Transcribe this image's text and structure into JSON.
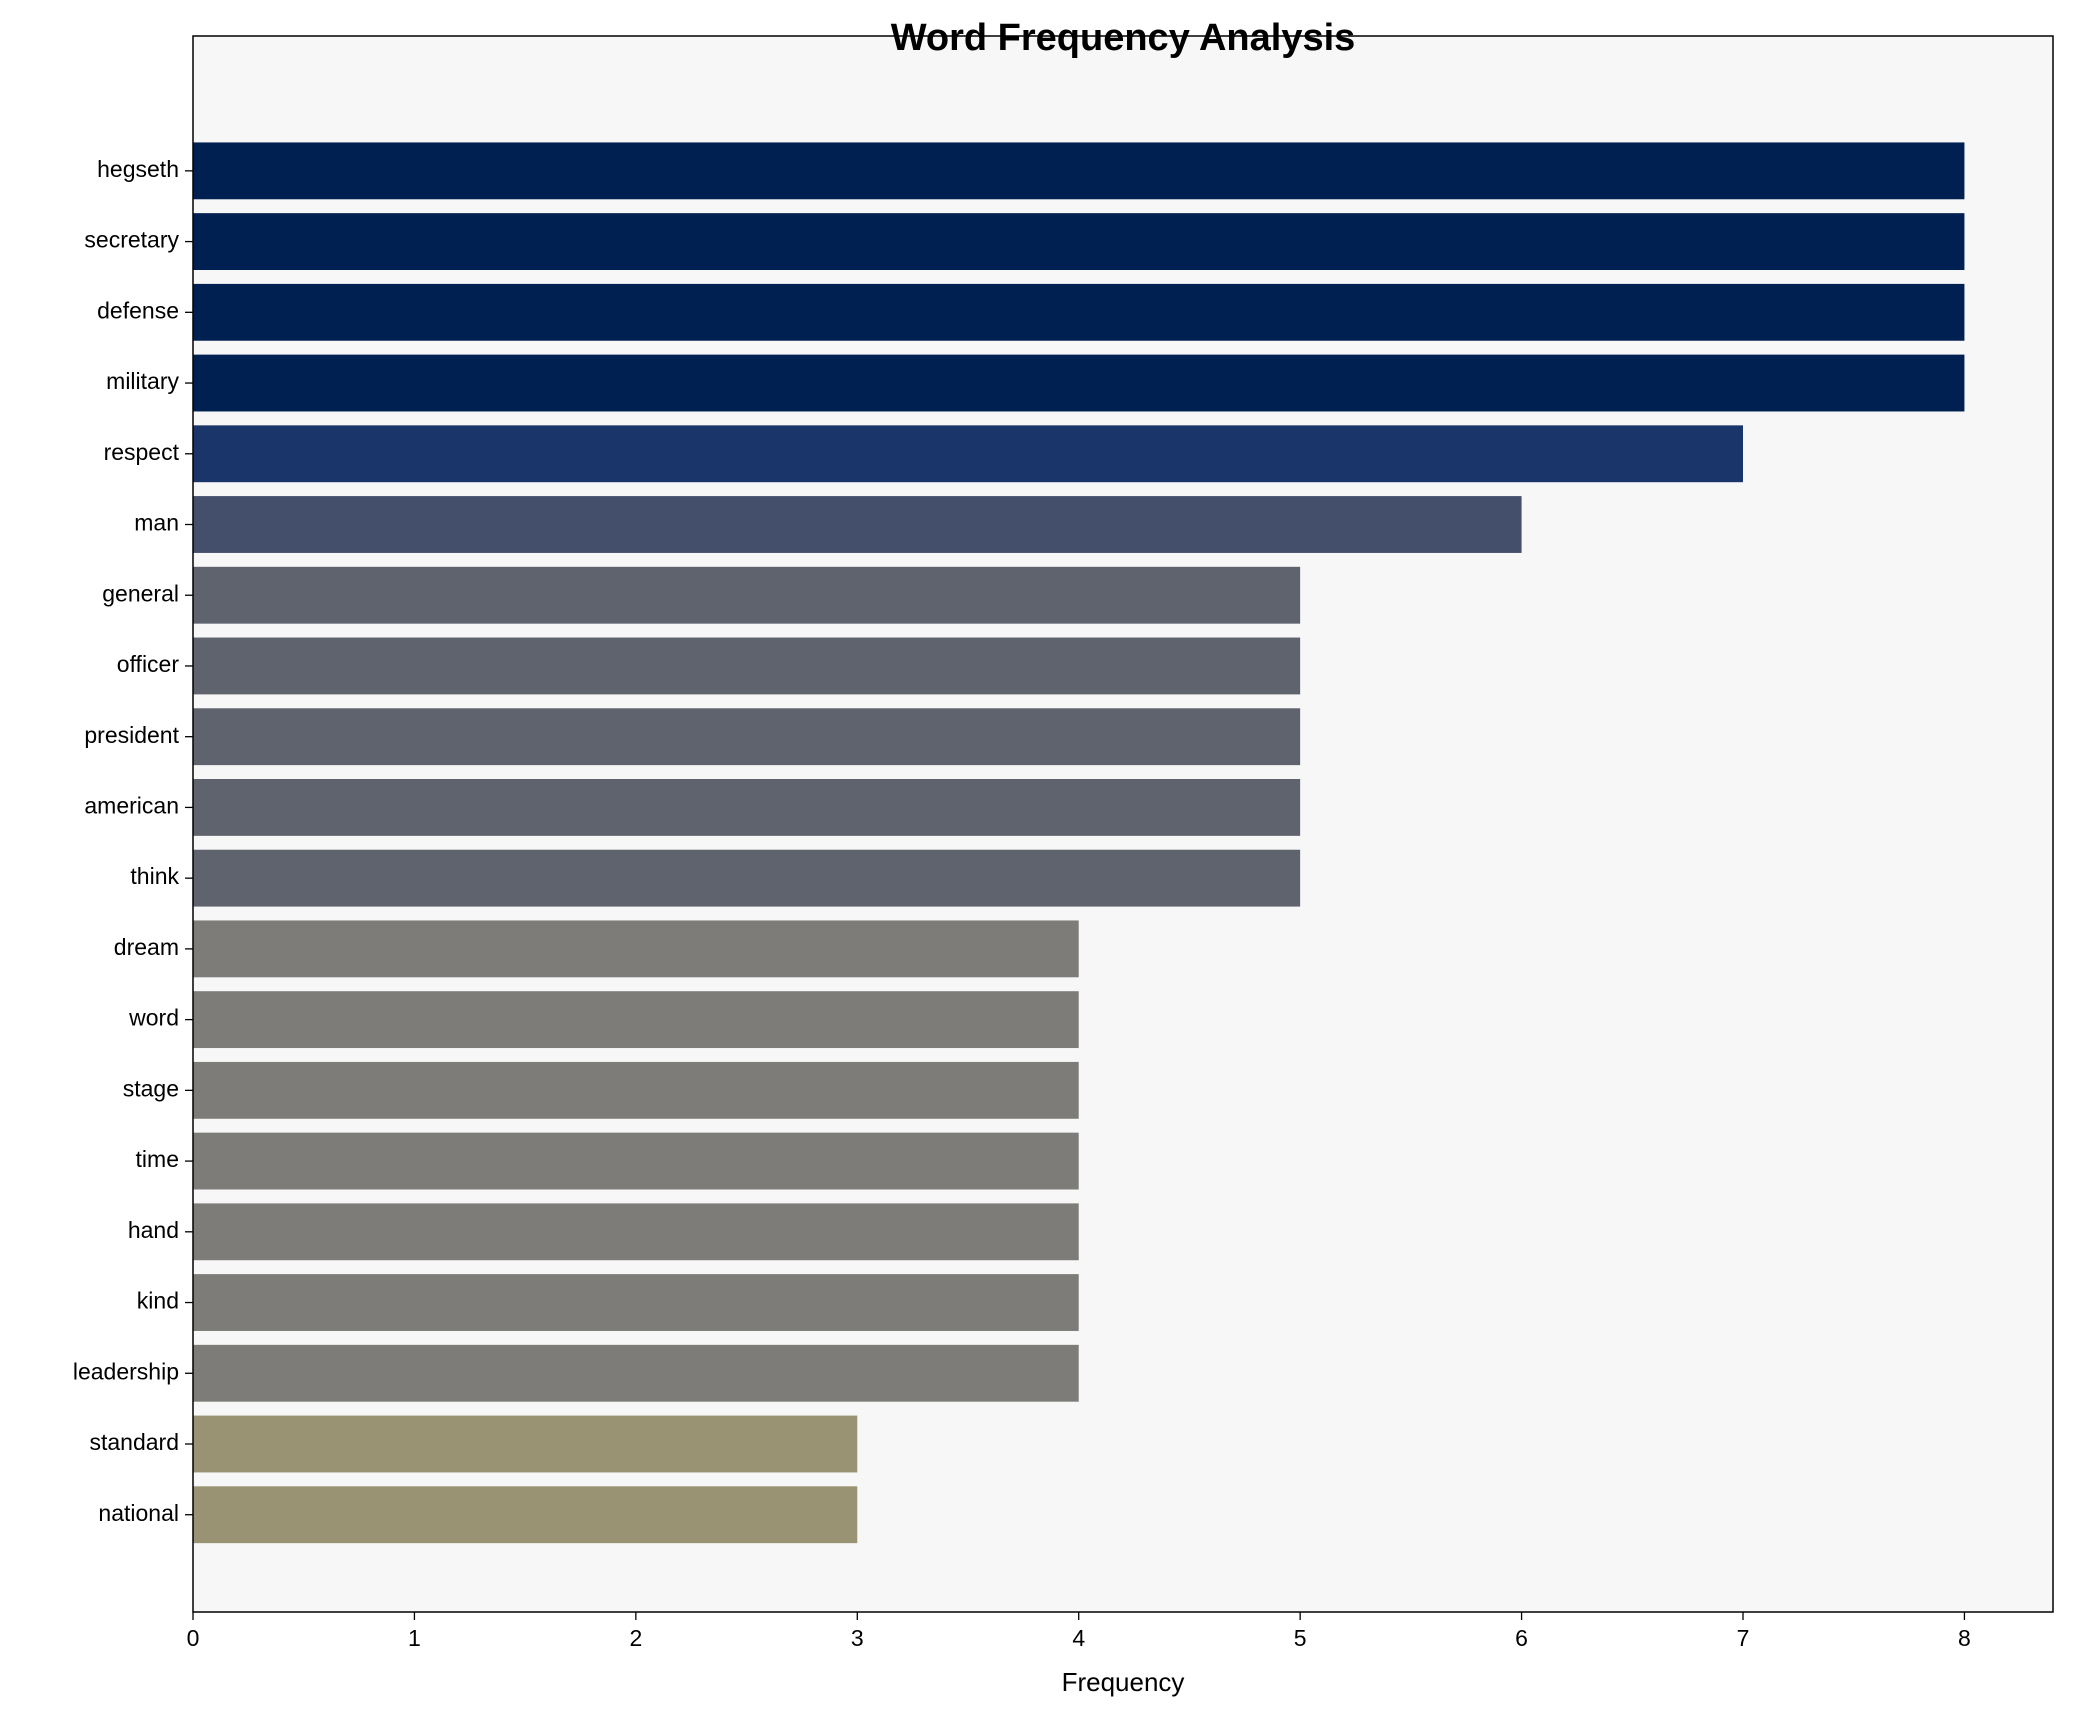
{
  "chart_data": {
    "type": "barh",
    "title": "Word Frequency Analysis",
    "xlabel": "Frequency",
    "categories": [
      "hegseth",
      "secretary",
      "defense",
      "military",
      "respect",
      "man",
      "general",
      "officer",
      "president",
      "american",
      "think",
      "dream",
      "word",
      "stage",
      "time",
      "hand",
      "kind",
      "leadership",
      "standard",
      "national"
    ],
    "values": [
      8,
      8,
      8,
      8,
      7,
      6,
      5,
      5,
      5,
      5,
      5,
      4,
      4,
      4,
      4,
      4,
      4,
      4,
      3,
      3
    ],
    "colors": [
      "#002051",
      "#002051",
      "#002051",
      "#002051",
      "#1a356a",
      "#444f6b",
      "#5f636e",
      "#5f636e",
      "#5f636e",
      "#5f636e",
      "#5f636e",
      "#7d7c78",
      "#7d7c78",
      "#7d7c78",
      "#7d7c78",
      "#7d7c78",
      "#7d7c78",
      "#7d7c78",
      "#9a9373",
      "#9a9373"
    ],
    "xlim": [
      0,
      8.4
    ],
    "xticks": [
      0,
      1,
      2,
      3,
      4,
      5,
      6,
      7,
      8
    ],
    "grid": false
  }
}
